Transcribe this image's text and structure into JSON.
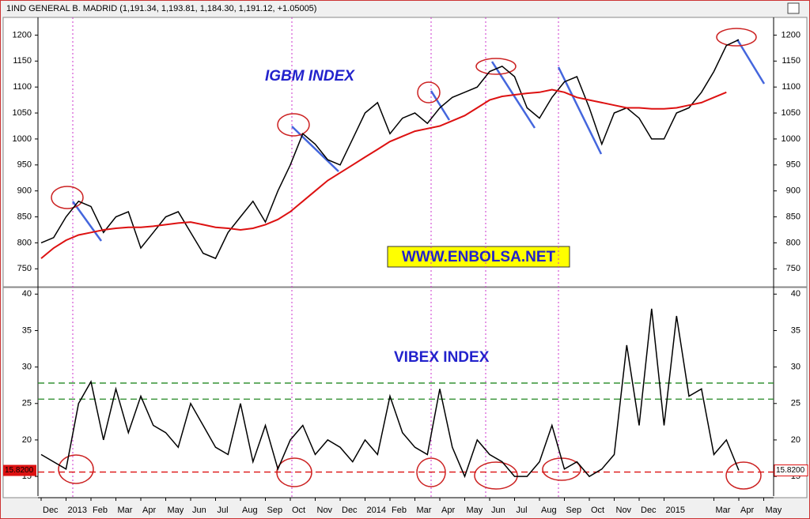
{
  "chart_data": [
    {
      "type": "line",
      "header": "1IND GENERAL B. MADRID (1,191.34, 1,193.81, 1,184.30, 1,191.12, +1.05005)",
      "annotation": "IGBM INDEX",
      "watermark": "WWW.ENBOLSA.NET",
      "ylim": [
        720,
        1225
      ],
      "yticks": [
        750,
        800,
        850,
        900,
        950,
        1000,
        1050,
        1100,
        1150,
        1200
      ],
      "series": [
        {
          "color": "#000000",
          "values": [
            800,
            810,
            850,
            880,
            870,
            820,
            850,
            860,
            790,
            820,
            850,
            860,
            820,
            780,
            770,
            820,
            850,
            880,
            840,
            900,
            950,
            1010,
            990,
            960,
            950,
            1000,
            1050,
            1070,
            1010,
            1040,
            1050,
            1030,
            1060,
            1080,
            1090,
            1100,
            1130,
            1140,
            1120,
            1060,
            1040,
            1080,
            1110,
            1120,
            1060,
            990,
            1050,
            1060,
            1040,
            1000,
            1000,
            1050,
            1060,
            1090,
            1130,
            1180,
            1191.12,
            null,
            null,
            null
          ]
        },
        {
          "color": "#dd1111",
          "values": [
            770,
            790,
            805,
            815,
            820,
            825,
            828,
            830,
            830,
            832,
            835,
            838,
            840,
            835,
            830,
            828,
            825,
            828,
            835,
            845,
            860,
            880,
            900,
            920,
            935,
            950,
            965,
            980,
            995,
            1005,
            1015,
            1020,
            1025,
            1035,
            1045,
            1060,
            1075,
            1082,
            1085,
            1088,
            1090,
            1095,
            1090,
            1080,
            1075,
            1070,
            1065,
            1060,
            1060,
            1058,
            1058,
            1060,
            1065,
            1070,
            1080,
            1090,
            null,
            null,
            null,
            null
          ]
        }
      ]
    },
    {
      "type": "line",
      "annotation": "VIBEX INDEX",
      "categories": [
        "Dec",
        null,
        "2013",
        null,
        "Feb",
        null,
        "Mar",
        null,
        "Apr",
        null,
        "May",
        null,
        "Jun",
        null,
        "Jul",
        null,
        "Aug",
        null,
        "Sep",
        null,
        "Oct",
        null,
        "Nov",
        null,
        "Dec",
        null,
        "2014",
        null,
        "Feb",
        null,
        "Mar",
        null,
        "Apr",
        null,
        "May",
        null,
        "Jun",
        null,
        "Jul",
        null,
        "Aug",
        null,
        "Sep",
        null,
        "Oct",
        null,
        "Nov",
        null,
        "Dec",
        null,
        "2015",
        null,
        null,
        null,
        "Mar",
        null,
        "Apr",
        null,
        "May",
        null
      ],
      "ylim": [
        12.3,
        40.9
      ],
      "yticks": [
        15,
        20,
        25,
        30,
        35,
        40
      ],
      "last_label": {
        "value": 15.82,
        "label": "15.8200"
      },
      "hlines": [
        {
          "value": 27.8,
          "color": "#228822"
        },
        {
          "value": 25.6,
          "color": "#228822"
        },
        {
          "value": 15.6,
          "color": "#dd1111"
        }
      ],
      "series": [
        {
          "color": "#000000",
          "values": [
            18,
            17,
            16,
            25,
            28,
            20,
            27,
            21,
            26,
            22,
            21,
            19,
            25,
            22,
            19,
            18,
            25,
            17,
            22,
            16,
            20,
            22,
            18,
            20,
            19,
            17,
            20,
            18,
            26,
            21,
            19,
            18,
            27,
            19,
            15,
            20,
            18,
            17,
            15,
            15,
            17,
            22,
            16,
            17,
            15,
            16,
            18,
            33,
            22,
            38,
            22,
            37,
            26,
            27,
            18,
            20,
            15.82,
            null,
            null,
            null
          ]
        }
      ]
    }
  ]
}
